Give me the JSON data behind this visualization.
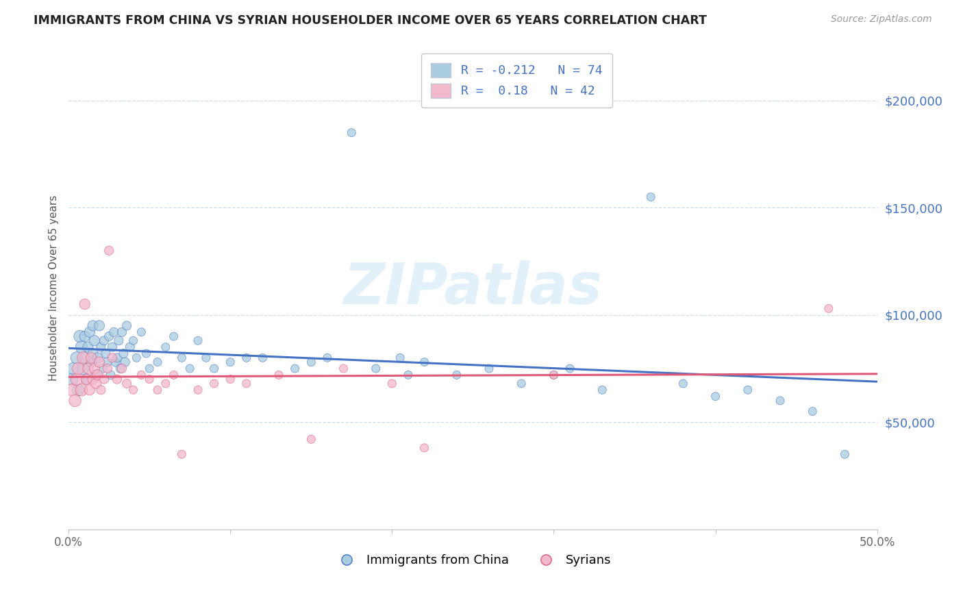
{
  "title": "IMMIGRANTS FROM CHINA VS SYRIAN HOUSEHOLDER INCOME OVER 65 YEARS CORRELATION CHART",
  "source": "Source: ZipAtlas.com",
  "ylabel": "Householder Income Over 65 years",
  "y_ticks": [
    50000,
    100000,
    150000,
    200000
  ],
  "y_tick_labels": [
    "$50,000",
    "$100,000",
    "$150,000",
    "$200,000"
  ],
  "xmin": 0.0,
  "xmax": 0.5,
  "ymin": 0,
  "ymax": 225000,
  "china_R": -0.212,
  "china_N": 74,
  "syria_R": 0.18,
  "syria_N": 42,
  "china_color": "#a8cce0",
  "syria_color": "#f2b8cc",
  "china_line_color": "#4472c4",
  "syria_line_color": "#e05878",
  "watermark_color": "#d0e8f5",
  "watermark": "ZIPatlas",
  "legend_label_china": "Immigrants from China",
  "legend_label_syria": "Syrians",
  "stat_color": "#4472c4",
  "china_scatter_x": [
    0.002,
    0.003,
    0.005,
    0.006,
    0.007,
    0.008,
    0.009,
    0.01,
    0.01,
    0.011,
    0.012,
    0.013,
    0.014,
    0.015,
    0.015,
    0.016,
    0.017,
    0.018,
    0.019,
    0.02,
    0.021,
    0.022,
    0.023,
    0.024,
    0.025,
    0.026,
    0.027,
    0.028,
    0.029,
    0.03,
    0.031,
    0.032,
    0.033,
    0.034,
    0.035,
    0.036,
    0.038,
    0.04,
    0.042,
    0.045,
    0.048,
    0.05,
    0.055,
    0.06,
    0.065,
    0.07,
    0.075,
    0.08,
    0.085,
    0.09,
    0.1,
    0.11,
    0.12,
    0.14,
    0.15,
    0.16,
    0.175,
    0.19,
    0.205,
    0.21,
    0.22,
    0.24,
    0.26,
    0.28,
    0.3,
    0.31,
    0.33,
    0.36,
    0.38,
    0.4,
    0.42,
    0.44,
    0.46,
    0.48
  ],
  "china_scatter_y": [
    70000,
    75000,
    80000,
    65000,
    90000,
    85000,
    75000,
    80000,
    90000,
    70000,
    85000,
    92000,
    78000,
    82000,
    95000,
    88000,
    72000,
    80000,
    95000,
    85000,
    75000,
    88000,
    82000,
    78000,
    90000,
    72000,
    85000,
    92000,
    78000,
    80000,
    88000,
    75000,
    92000,
    82000,
    78000,
    95000,
    85000,
    88000,
    80000,
    92000,
    82000,
    75000,
    78000,
    85000,
    90000,
    80000,
    75000,
    88000,
    80000,
    75000,
    78000,
    80000,
    80000,
    75000,
    78000,
    80000,
    185000,
    75000,
    80000,
    72000,
    78000,
    72000,
    75000,
    68000,
    72000,
    75000,
    65000,
    155000,
    68000,
    62000,
    65000,
    60000,
    55000,
    35000
  ],
  "syria_scatter_x": [
    0.002,
    0.004,
    0.005,
    0.006,
    0.008,
    0.009,
    0.01,
    0.011,
    0.012,
    0.013,
    0.014,
    0.015,
    0.016,
    0.017,
    0.018,
    0.019,
    0.02,
    0.022,
    0.024,
    0.025,
    0.027,
    0.03,
    0.033,
    0.036,
    0.04,
    0.045,
    0.05,
    0.055,
    0.06,
    0.065,
    0.07,
    0.08,
    0.09,
    0.1,
    0.11,
    0.13,
    0.15,
    0.17,
    0.2,
    0.22,
    0.3,
    0.47
  ],
  "syria_scatter_y": [
    65000,
    60000,
    70000,
    75000,
    65000,
    80000,
    105000,
    70000,
    75000,
    65000,
    80000,
    70000,
    75000,
    68000,
    72000,
    78000,
    65000,
    70000,
    75000,
    130000,
    80000,
    70000,
    75000,
    68000,
    65000,
    72000,
    70000,
    65000,
    68000,
    72000,
    35000,
    65000,
    68000,
    70000,
    68000,
    72000,
    42000,
    75000,
    68000,
    38000,
    72000,
    103000
  ]
}
